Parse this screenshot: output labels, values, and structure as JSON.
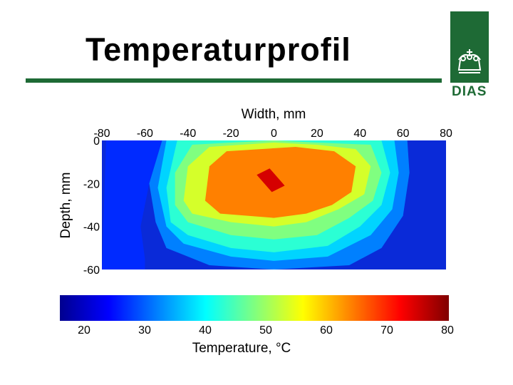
{
  "slide": {
    "title": "Temperaturprofil",
    "logo_text": "DIAS",
    "colors": {
      "brand_green": "#1e6a35"
    }
  },
  "chart_data": [
    {
      "type": "contour",
      "title": "",
      "xlabel": "Width, mm",
      "ylabel": "Depth, mm",
      "xlim": [
        -80,
        80
      ],
      "ylim": [
        -60,
        0
      ],
      "xticks": [
        "-80",
        "-60",
        "-40",
        "-20",
        "0",
        "20",
        "40",
        "60",
        "80"
      ],
      "yticks": [
        "0",
        "-20",
        "-40",
        "-60"
      ],
      "x_axis_position": "top",
      "colormap": "jet",
      "color_range": [
        20,
        80
      ],
      "levels": [
        {
          "level": 30,
          "polygon": [
            [
              -78,
              0
            ],
            [
              -80,
              -60
            ],
            [
              -60,
              -60
            ],
            [
              -60,
              -55
            ],
            [
              -62,
              -40
            ],
            [
              -58,
              -20
            ],
            [
              -52,
              0
            ]
          ]
        },
        {
          "level": 35,
          "polygon": [
            [
              -52,
              0
            ],
            [
              -58,
              -20
            ],
            [
              -55,
              -38
            ],
            [
              -50,
              -50
            ],
            [
              -30,
              -58
            ],
            [
              0,
              -60
            ],
            [
              35,
              -58
            ],
            [
              50,
              -50
            ],
            [
              60,
              -35
            ],
            [
              63,
              -15
            ],
            [
              62,
              0
            ]
          ]
        },
        {
          "level": 40,
          "polygon": [
            [
              -50,
              0
            ],
            [
              -54,
              -22
            ],
            [
              -50,
              -40
            ],
            [
              -42,
              -48
            ],
            [
              -20,
              -54
            ],
            [
              0,
              -56
            ],
            [
              25,
              -54
            ],
            [
              45,
              -44
            ],
            [
              55,
              -32
            ],
            [
              58,
              -15
            ],
            [
              56,
              0
            ]
          ]
        },
        {
          "level": 45,
          "polygon": [
            [
              -45,
              0
            ],
            [
              -50,
              -22
            ],
            [
              -48,
              -38
            ],
            [
              -40,
              -44
            ],
            [
              -20,
              -50
            ],
            [
              0,
              -52
            ],
            [
              25,
              -49
            ],
            [
              40,
              -40
            ],
            [
              50,
              -30
            ],
            [
              54,
              -15
            ],
            [
              50,
              0
            ]
          ]
        },
        {
          "level": 50,
          "polygon": [
            [
              -38,
              -2
            ],
            [
              -46,
              -15
            ],
            [
              -46,
              -30
            ],
            [
              -40,
              -38
            ],
            [
              -20,
              -44
            ],
            [
              0,
              -46
            ],
            [
              20,
              -44
            ],
            [
              35,
              -36
            ],
            [
              46,
              -28
            ],
            [
              50,
              -15
            ],
            [
              45,
              -2
            ],
            [
              20,
              -1
            ],
            [
              0,
              0
            ],
            [
              -20,
              -1
            ]
          ]
        },
        {
          "level": 55,
          "polygon": [
            [
              -30,
              -3
            ],
            [
              -40,
              -12
            ],
            [
              -42,
              -28
            ],
            [
              -38,
              -34
            ],
            [
              -20,
              -38
            ],
            [
              0,
              -40
            ],
            [
              15,
              -38
            ],
            [
              30,
              -32
            ],
            [
              42,
              -25
            ],
            [
              45,
              -12
            ],
            [
              38,
              -4
            ],
            [
              20,
              -2
            ],
            [
              0,
              -1
            ],
            [
              -15,
              -2
            ]
          ]
        },
        {
          "level": 65,
          "polygon": [
            [
              -22,
              -5
            ],
            [
              -30,
              -12
            ],
            [
              -32,
              -28
            ],
            [
              -25,
              -34
            ],
            [
              0,
              -36
            ],
            [
              15,
              -34
            ],
            [
              27,
              -30
            ],
            [
              36,
              -24
            ],
            [
              38,
              -12
            ],
            [
              28,
              -5
            ],
            [
              10,
              -3
            ]
          ]
        },
        {
          "level": 75,
          "polygon": [
            [
              -8,
              -16
            ],
            [
              -1,
              -24
            ],
            [
              5,
              -21
            ],
            [
              -2,
              -13
            ]
          ]
        }
      ],
      "colorbar": {
        "range": [
          20,
          80
        ],
        "ticks": [
          "20",
          "30",
          "40",
          "50",
          "60",
          "70",
          "80"
        ],
        "label": "Temperature, °C"
      }
    }
  ]
}
